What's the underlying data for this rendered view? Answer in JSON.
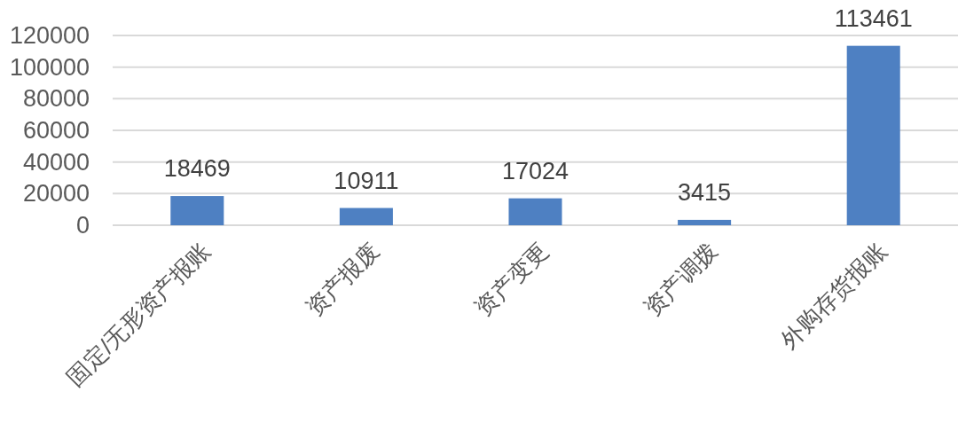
{
  "chart_data": {
    "type": "bar",
    "categories": [
      "固定/无形资产报账",
      "资产报废",
      "资产变更",
      "资产调拨",
      "外购存货报账"
    ],
    "values": [
      18469,
      10911,
      17024,
      3415,
      113461
    ],
    "color": "#4e80c2",
    "ylim": [
      0,
      120000
    ],
    "yticks": [
      0,
      20000,
      40000,
      60000,
      80000,
      100000,
      120000
    ],
    "grid": "y",
    "data_labels": true
  }
}
